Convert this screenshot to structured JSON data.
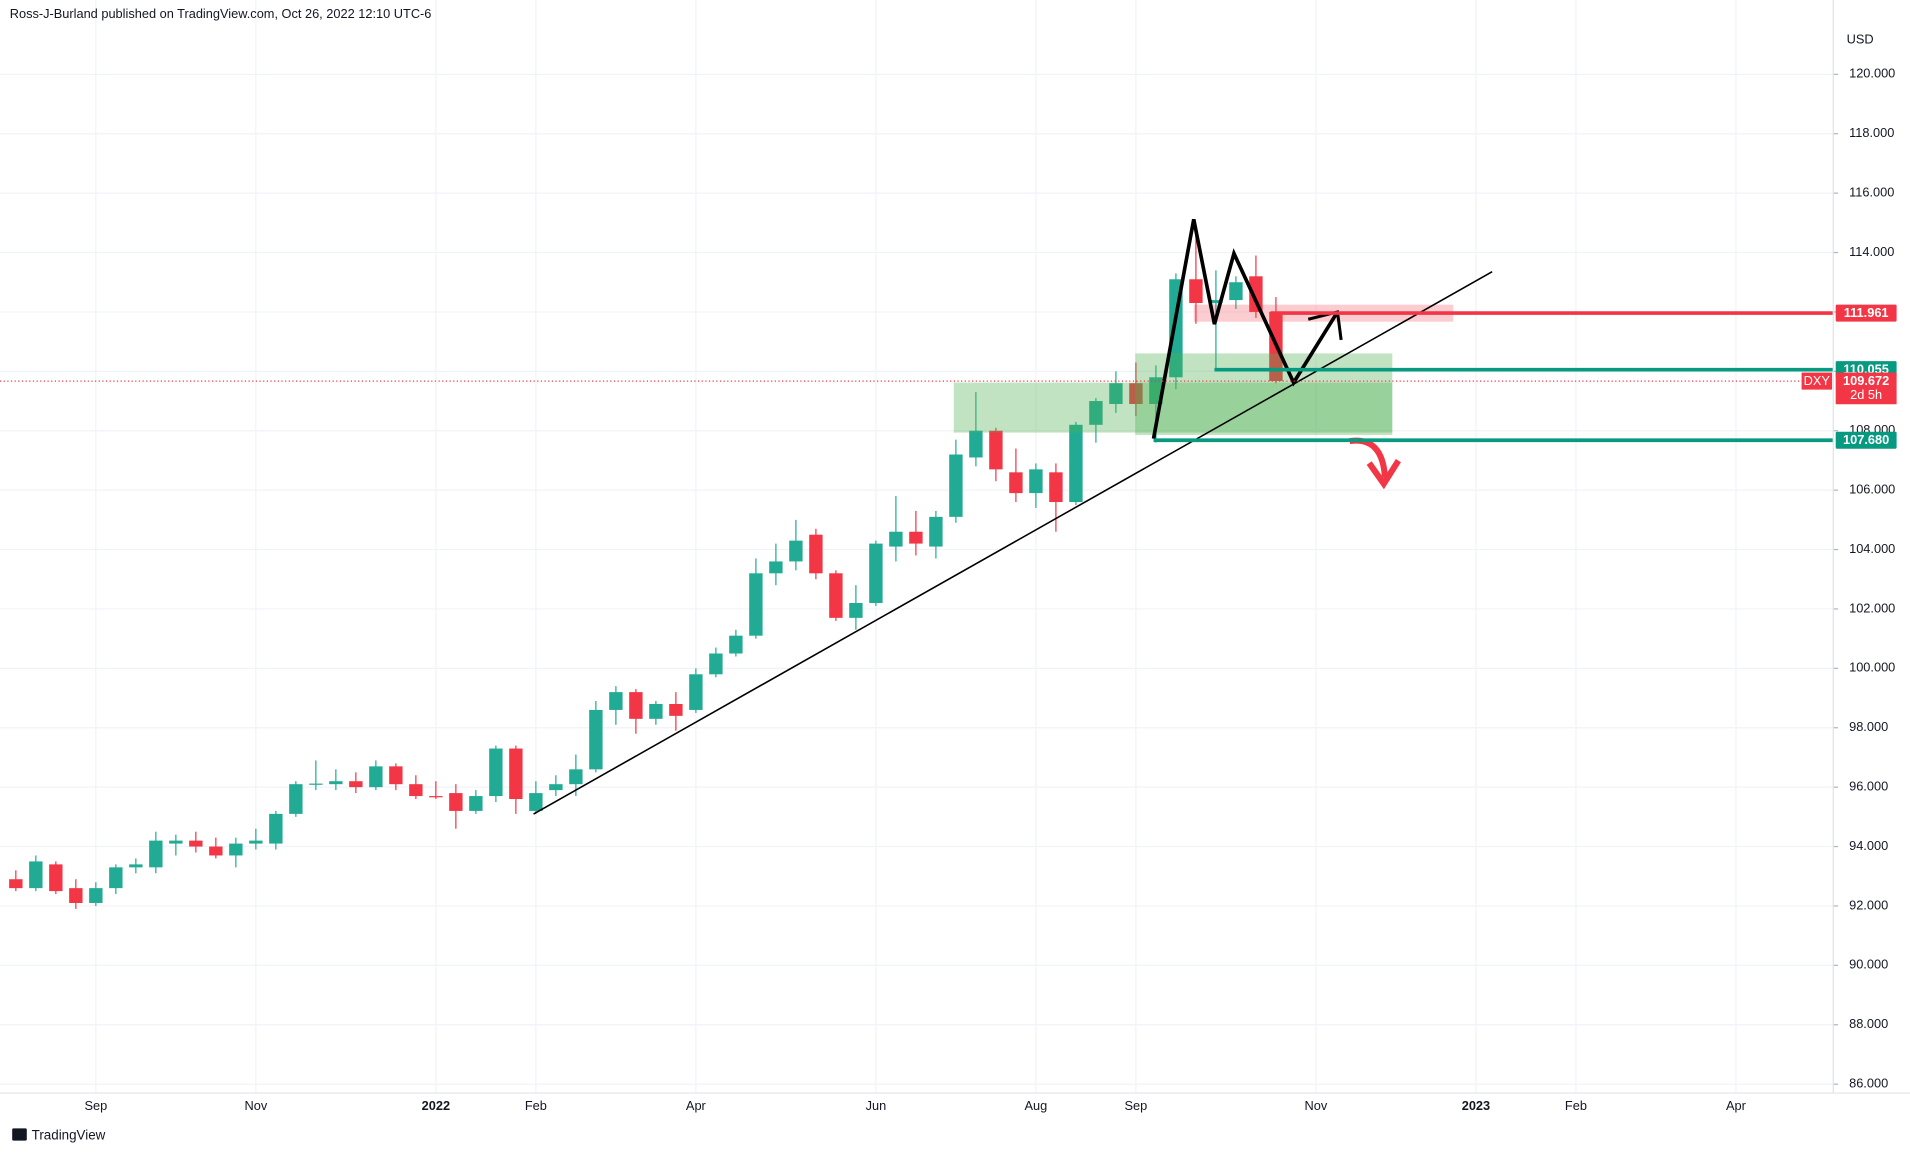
{
  "header": "Ross-J-Burland published on TradingView.com, Oct 26, 2022 12:10 UTC-6",
  "footer": "TradingView",
  "chart_data": {
    "type": "candlestick",
    "y_unit": "USD",
    "categories": [
      null,
      null,
      null,
      null,
      "Sep",
      null,
      null,
      null,
      null,
      null,
      null,
      null,
      "Nov",
      null,
      null,
      null,
      null,
      null,
      null,
      null,
      null,
      "2022",
      null,
      null,
      null,
      null,
      "Feb",
      null,
      null,
      null,
      null,
      null,
      null,
      null,
      "Apr",
      null,
      null,
      null,
      null,
      null,
      null,
      null,
      null,
      "Jun",
      null,
      null,
      null,
      null,
      null,
      null,
      null,
      "Aug",
      null,
      null,
      null,
      null,
      "Sep",
      null,
      null,
      null,
      null,
      null,
      null,
      null,
      null,
      "Nov",
      null,
      null,
      null,
      null,
      null,
      null,
      null,
      "2023",
      null,
      null,
      null,
      null,
      "Feb",
      null,
      null,
      null,
      null,
      null,
      null,
      null,
      "Apr",
      null,
      null,
      null,
      null
    ],
    "open": [
      92.9,
      92.6,
      93.4,
      92.6,
      92.1,
      92.6,
      93.3,
      93.3,
      94.1,
      94.2,
      94.0,
      93.7,
      94.1,
      94.1,
      95.1,
      96.1,
      96.1,
      96.2,
      96.0,
      96.7,
      96.1,
      95.7,
      95.8,
      95.2,
      95.7,
      97.3,
      95.2,
      95.9,
      96.1,
      96.6,
      98.6,
      99.2,
      98.3,
      98.8,
      98.6,
      99.8,
      100.5,
      101.1,
      103.2,
      103.6,
      104.5,
      103.2,
      101.7,
      102.2,
      104.1,
      104.6,
      104.1,
      105.1,
      107.1,
      108.0,
      106.6,
      105.9,
      106.6,
      105.6,
      108.2,
      108.9,
      109.6,
      108.9,
      109.8,
      113.1,
      112.3,
      112.4,
      113.2,
      112.0,
      null,
      null,
      null,
      null,
      null,
      null,
      null,
      null,
      null,
      null,
      null,
      null,
      null,
      null,
      null,
      null,
      null,
      null,
      null,
      null,
      null,
      null,
      null,
      null,
      null,
      null,
      null
    ],
    "high": [
      93.2,
      93.7,
      93.5,
      92.9,
      92.8,
      93.4,
      93.6,
      94.5,
      94.4,
      94.5,
      94.3,
      94.3,
      94.6,
      95.2,
      96.2,
      96.9,
      96.6,
      96.5,
      96.9,
      96.8,
      96.4,
      96.2,
      96.1,
      95.9,
      97.4,
      97.4,
      96.2,
      96.4,
      97.1,
      98.9,
      99.4,
      99.3,
      98.9,
      99.2,
      100.0,
      100.7,
      101.3,
      103.7,
      104.2,
      105.0,
      104.7,
      103.3,
      102.8,
      104.3,
      105.8,
      105.3,
      105.3,
      107.7,
      109.3,
      108.1,
      107.4,
      106.9,
      106.9,
      108.3,
      109.1,
      110.0,
      110.3,
      110.2,
      113.3,
      114.8,
      113.4,
      113.2,
      113.9,
      112.5,
      null,
      null,
      null,
      null,
      null,
      null,
      null,
      null,
      null,
      null,
      null,
      null,
      null,
      null,
      null,
      null,
      null,
      null,
      null,
      null,
      null,
      null,
      null,
      null,
      null,
      null,
      null
    ],
    "low": [
      92.5,
      92.5,
      92.4,
      91.9,
      92.0,
      92.4,
      93.1,
      93.1,
      93.7,
      93.8,
      93.6,
      93.3,
      93.9,
      93.9,
      95.0,
      95.9,
      95.9,
      95.8,
      95.9,
      95.9,
      95.6,
      95.6,
      94.6,
      95.1,
      95.5,
      95.1,
      95.1,
      95.7,
      95.7,
      96.5,
      98.1,
      97.8,
      98.1,
      97.9,
      98.5,
      99.7,
      100.4,
      101.0,
      102.8,
      103.3,
      103.0,
      101.6,
      101.3,
      102.1,
      103.6,
      103.8,
      103.7,
      104.9,
      106.8,
      106.3,
      105.6,
      105.4,
      104.6,
      105.5,
      107.6,
      108.6,
      108.5,
      107.6,
      109.4,
      111.6,
      110.1,
      112.1,
      111.8,
      109.6,
      null,
      null,
      null,
      null,
      null,
      null,
      null,
      null,
      null,
      null,
      null,
      null,
      null,
      null,
      null,
      null,
      null,
      null,
      null,
      null,
      null,
      null,
      null,
      null,
      null,
      null,
      null
    ],
    "close": [
      92.6,
      93.5,
      92.5,
      92.1,
      92.6,
      93.3,
      93.4,
      94.2,
      94.2,
      94.0,
      93.7,
      94.1,
      94.2,
      95.1,
      96.1,
      96.12,
      96.2,
      96.0,
      96.7,
      96.1,
      95.7,
      95.68,
      95.2,
      95.7,
      97.3,
      95.6,
      95.8,
      96.1,
      96.6,
      98.6,
      99.2,
      98.3,
      98.8,
      98.4,
      99.8,
      100.5,
      101.1,
      103.2,
      103.6,
      104.3,
      103.2,
      101.7,
      102.2,
      104.2,
      104.6,
      104.2,
      105.1,
      107.2,
      108.0,
      106.7,
      105.9,
      106.7,
      105.6,
      108.2,
      109.0,
      109.6,
      108.9,
      109.8,
      113.1,
      112.3,
      112.4,
      113.0,
      112.0,
      109.672,
      null,
      null,
      null,
      null,
      null,
      null,
      null,
      null,
      null,
      null,
      null,
      null,
      null,
      null,
      null,
      null,
      null,
      null,
      null,
      null,
      null,
      null,
      null,
      null,
      null,
      null,
      null
    ],
    "up_color": "#22ab94",
    "down_color": "#f23645",
    "ylim": [
      85.7,
      121.6
    ],
    "yticks": [
      {
        "value": 86,
        "label": "86.000"
      },
      {
        "value": 88,
        "label": "88.000"
      },
      {
        "value": 90,
        "label": "90.000"
      },
      {
        "value": 92,
        "label": "92.000"
      },
      {
        "value": 94,
        "label": "94.000"
      },
      {
        "value": 96,
        "label": "96.000"
      },
      {
        "value": 98,
        "label": "98.000"
      },
      {
        "value": 100,
        "label": "100.000"
      },
      {
        "value": 102,
        "label": "102.000"
      },
      {
        "value": 104,
        "label": "104.000"
      },
      {
        "value": 106,
        "label": "106.000"
      },
      {
        "value": 108,
        "label": "108.000"
      },
      {
        "value": 110,
        "label": "110.000"
      },
      {
        "value": 112,
        "label": "112.000"
      },
      {
        "value": 114,
        "label": "114.000"
      },
      {
        "value": 116,
        "label": "116.000"
      },
      {
        "value": 118,
        "label": "118.000"
      },
      {
        "value": 120,
        "label": "120.000"
      }
    ],
    "grid": true,
    "levels": [
      {
        "value": 111.961,
        "color": "#f23645"
      },
      {
        "value": 110.055,
        "color": "#089981"
      },
      {
        "value": 107.68,
        "label": "107.680",
        "color": "#089981"
      }
    ],
    "last_price": {
      "symbol": "DXY",
      "value": 109.672,
      "countdown": "2d 5h",
      "color": "#f23645"
    }
  }
}
